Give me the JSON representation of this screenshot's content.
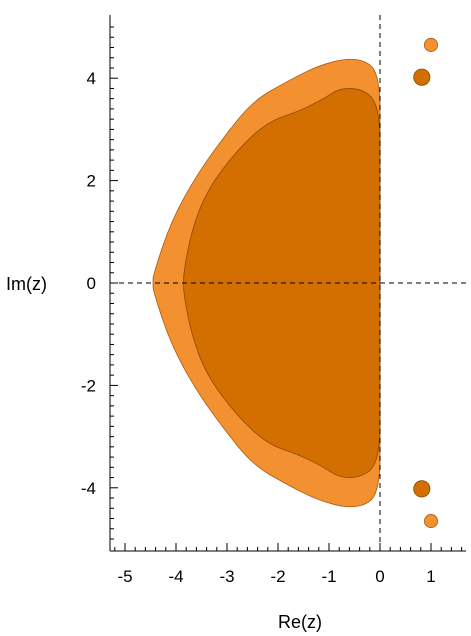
{
  "chart_data": {
    "type": "area",
    "title": "",
    "xlabel": "Re(z)",
    "ylabel": "Im(z)",
    "xlim": [
      -5.25,
      1.75
    ],
    "ylim": [
      -5.25,
      5.35
    ],
    "xticks": [
      -5,
      -4,
      -3,
      -2,
      -1,
      0,
      1
    ],
    "xtick_labels": [
      "-5",
      "-4",
      "-3",
      "-2",
      "-1",
      "0",
      "1"
    ],
    "yticks": [
      4,
      2,
      0,
      -2,
      -4
    ],
    "ytick_labels": [
      "4",
      "2",
      "0",
      "-2",
      "-4"
    ],
    "grid": false,
    "reference_lines": [
      {
        "orientation": "vertical",
        "at": 0,
        "style": "dashed"
      },
      {
        "orientation": "horizontal",
        "at": 0,
        "style": "dashed"
      }
    ],
    "series": [
      {
        "fill": "#f39131",
        "edge": "#a85a10",
        "boundary_upper": [
          [
            0,
            3.6
          ],
          [
            -0.05,
            4.05
          ],
          [
            -0.2,
            4.3
          ],
          [
            -0.6,
            4.4
          ],
          [
            -1.2,
            4.25
          ],
          [
            -1.8,
            3.95
          ],
          [
            -2.5,
            3.55
          ],
          [
            -3.1,
            2.8
          ],
          [
            -3.6,
            2.1
          ],
          [
            -4.1,
            1.2
          ],
          [
            -4.45,
            0.15
          ],
          [
            -4.45,
            0
          ]
        ],
        "islands": [
          {
            "x": 1.0,
            "y": 4.65,
            "r": 0.13
          },
          {
            "x": 1.0,
            "y": -4.65,
            "r": 0.13
          }
        ]
      },
      {
        "fill": "#d36f00",
        "edge": "#8a4a00",
        "boundary_upper": [
          [
            0,
            2.55
          ],
          [
            0.0,
            3.1
          ],
          [
            -0.1,
            3.6
          ],
          [
            -0.4,
            3.8
          ],
          [
            -0.8,
            3.8
          ],
          [
            -1.1,
            3.6
          ],
          [
            -1.6,
            3.35
          ],
          [
            -2.2,
            3.15
          ],
          [
            -2.8,
            2.6
          ],
          [
            -3.4,
            1.8
          ],
          [
            -3.7,
            1.0
          ],
          [
            -3.85,
            0.2
          ],
          [
            -3.85,
            0
          ]
        ],
        "islands": [
          {
            "x": 0.82,
            "y": 4.02,
            "r": 0.16
          },
          {
            "x": 0.82,
            "y": -4.02,
            "r": 0.16
          }
        ]
      }
    ]
  }
}
